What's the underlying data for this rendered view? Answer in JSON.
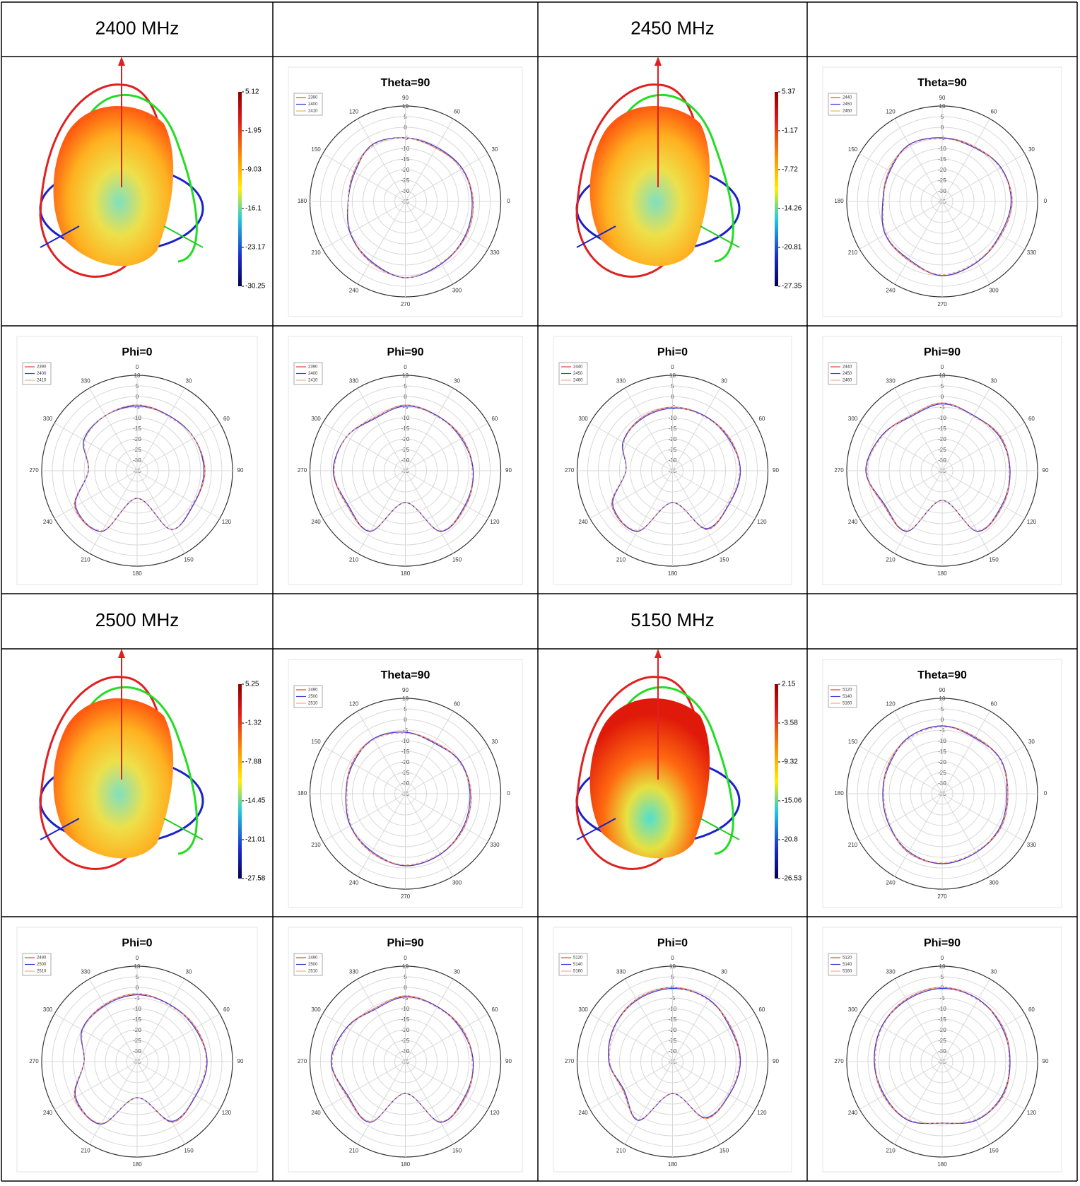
{
  "polar_axes": {
    "rlim": [
      -35,
      10
    ],
    "rticks": [
      10,
      5,
      0,
      -5,
      -10,
      -15,
      -20,
      -25,
      -30,
      -35
    ],
    "theta": {
      "zero": "east",
      "direction": "ccw",
      "angles": [
        0,
        30,
        60,
        90,
        120,
        150,
        180,
        210,
        240,
        270,
        300,
        330
      ]
    },
    "phi": {
      "zero": "north",
      "direction": "cw",
      "angles": [
        0,
        30,
        60,
        90,
        120,
        150,
        180,
        210,
        240,
        270,
        300,
        330
      ]
    }
  },
  "bands": [
    {
      "label": "2400 MHz",
      "pattern3d": {
        "colorbar": [
          5.12,
          -1.95,
          -9.03,
          -16.1,
          -23.17,
          -30.25
        ]
      },
      "plots": [
        {
          "type": "polar",
          "title": "Theta=90",
          "axis": "theta",
          "series": [
            {
              "name": "2390",
              "color": "#e0453a",
              "values": [
                -3,
                -4,
                -6,
                -5,
                -4,
                -7,
                -8,
                -5,
                -2,
                1,
                -1,
                -2
              ]
            },
            {
              "name": "2400",
              "color": "#3b3bd8",
              "values": [
                -3.5,
                -4,
                -5.5,
                -5,
                -4,
                -7.5,
                -8,
                -5,
                -2.5,
                1,
                -1,
                -2.5
              ]
            },
            {
              "name": "2410",
              "color": "#f3a98a",
              "values": [
                -3,
                -4.5,
                -6,
                -5,
                -4.5,
                -7,
                -8,
                -5.5,
                -2,
                1,
                -1.5,
                -2
              ]
            }
          ]
        },
        {
          "type": "polar",
          "title": "Phi=0",
          "axis": "phi",
          "series": [
            {
              "name": "2390",
              "color": "#e0453a",
              "values": [
                -4,
                -5,
                -4,
                -3,
                -4,
                -3,
                -22,
                -2,
                -1,
                -12,
                -6,
                -5
              ]
            },
            {
              "name": "2400",
              "color": "#3b3bd8",
              "values": [
                -4.5,
                -5,
                -4,
                -3.5,
                -4,
                -3,
                -22,
                -2,
                -1.5,
                -12,
                -6,
                -5
              ]
            },
            {
              "name": "2410",
              "color": "#f3a98a",
              "values": [
                -4,
                -5.5,
                -4,
                -3,
                -4.5,
                -3,
                -22,
                -2.5,
                -1,
                -12,
                -6.5,
                -5
              ]
            }
          ]
        },
        {
          "type": "polar",
          "title": "Phi=90",
          "axis": "phi",
          "series": [
            {
              "name": "2390",
              "color": "#e0453a",
              "values": [
                -4,
                -5,
                -4,
                -3,
                -2,
                -2,
                -20,
                -2,
                -3,
                -1,
                -3,
                -6
              ]
            },
            {
              "name": "2400",
              "color": "#3b3bd8",
              "values": [
                -4.5,
                -5,
                -4.5,
                -3,
                -2.5,
                -2,
                -20,
                -2,
                -3.5,
                -1,
                -3,
                -6.5
              ]
            },
            {
              "name": "2410",
              "color": "#f3a98a",
              "values": [
                -4,
                -5.5,
                -4,
                -3.5,
                -2,
                -2.5,
                -20,
                -2.5,
                -3,
                -1.5,
                -3,
                -6
              ]
            }
          ]
        }
      ]
    },
    {
      "label": "2450 MHz",
      "pattern3d": {
        "colorbar": [
          5.37,
          -1.17,
          -7.72,
          -14.26,
          -20.81,
          -27.35
        ]
      },
      "plots": [
        {
          "type": "polar",
          "title": "Theta=90",
          "axis": "theta",
          "series": [
            {
              "name": "2440",
              "color": "#e0453a",
              "values": [
                -2,
                -3,
                -5,
                -5,
                -4,
                -6,
                -7,
                -4,
                -3,
                0,
                -2,
                -3
              ]
            },
            {
              "name": "2450",
              "color": "#3b3bd8",
              "values": [
                -2.5,
                -3,
                -5.5,
                -5,
                -4,
                -6.5,
                -7,
                -4,
                -3.5,
                0,
                -2,
                -3.5
              ]
            },
            {
              "name": "2460",
              "color": "#f3a98a",
              "values": [
                -2,
                -3.5,
                -5,
                -5.5,
                -4.5,
                -6,
                -7.5,
                -4.5,
                -3,
                -0.5,
                -2.5,
                -3
              ]
            }
          ]
        },
        {
          "type": "polar",
          "title": "Phi=0",
          "axis": "phi",
          "series": [
            {
              "name": "2440",
              "color": "#e0453a",
              "values": [
                -5,
                -5,
                -4,
                -3,
                -4,
                -3,
                -20,
                -2,
                -2,
                -13,
                -8,
                -6
              ]
            },
            {
              "name": "2450",
              "color": "#3b3bd8",
              "values": [
                -5.5,
                -5,
                -4.5,
                -3,
                -4,
                -3.5,
                -20,
                -2,
                -2.5,
                -13,
                -8,
                -6.5
              ]
            },
            {
              "name": "2460",
              "color": "#f3a98a",
              "values": [
                -5,
                -5.5,
                -4,
                -3.5,
                -4.5,
                -3,
                -20,
                -2.5,
                -2,
                -13,
                -8.5,
                -6
              ]
            }
          ]
        },
        {
          "type": "polar",
          "title": "Phi=90",
          "axis": "phi",
          "series": [
            {
              "name": "2440",
              "color": "#e0453a",
              "values": [
                -3,
                -5,
                -3,
                -3,
                -2,
                -2,
                -21,
                -2,
                -3,
                1,
                -2,
                -5
              ]
            },
            {
              "name": "2450",
              "color": "#3b3bd8",
              "values": [
                -3.5,
                -5,
                -3.5,
                -3,
                -2.5,
                -2,
                -21,
                -2,
                -3.5,
                1,
                -2,
                -5.5
              ]
            },
            {
              "name": "2460",
              "color": "#f3a98a",
              "values": [
                -3,
                -5.5,
                -3,
                -3.5,
                -2,
                -2.5,
                -21,
                -2.5,
                -3,
                0.5,
                -2.5,
                -5
              ]
            }
          ]
        }
      ]
    },
    {
      "label": "2500 MHz",
      "pattern3d": {
        "colorbar": [
          5.25,
          -1.32,
          -7.88,
          -14.45,
          -21.01,
          -27.58
        ]
      },
      "plots": [
        {
          "type": "polar",
          "title": "Theta=90",
          "axis": "theta",
          "series": [
            {
              "name": "2490",
              "color": "#e0453a",
              "values": [
                -4,
                -5,
                -7,
                -6,
                -5,
                -6,
                -7,
                -5,
                -3,
                -1,
                -2,
                -3
              ]
            },
            {
              "name": "2500",
              "color": "#3b3bd8",
              "values": [
                -4.5,
                -5,
                -7.5,
                -6,
                -5,
                -6.5,
                -7,
                -5,
                -3.5,
                -1,
                -2,
                -3.5
              ]
            },
            {
              "name": "2510",
              "color": "#f3a98a",
              "values": [
                -4,
                -5.5,
                -7,
                -6.5,
                -5.5,
                -6,
                -7.5,
                -5.5,
                -3,
                -1.5,
                -2.5,
                -3
              ]
            }
          ]
        },
        {
          "type": "polar",
          "title": "Phi=0",
          "axis": "phi",
          "series": [
            {
              "name": "2490",
              "color": "#e0453a",
              "values": [
                -3,
                -4,
                -3,
                -2,
                -3,
                -2,
                -18,
                -1,
                -1,
                -10,
                -5,
                -4
              ]
            },
            {
              "name": "2500",
              "color": "#3b3bd8",
              "values": [
                -3.5,
                -4,
                -3.5,
                -2,
                -3,
                -2.5,
                -18,
                -1,
                -1.5,
                -10,
                -5,
                -4.5
              ]
            },
            {
              "name": "2510",
              "color": "#f3a98a",
              "values": [
                -3,
                -4.5,
                -3,
                -2.5,
                -3.5,
                -2,
                -18,
                -1.5,
                -1,
                -10,
                -5.5,
                -4
              ]
            }
          ]
        },
        {
          "type": "polar",
          "title": "Phi=90",
          "axis": "phi",
          "series": [
            {
              "name": "2490",
              "color": "#e0453a",
              "values": [
                -4,
                -5,
                -4,
                -3,
                -2,
                -2,
                -20,
                -2,
                -3,
                0,
                -3,
                -6
              ]
            },
            {
              "name": "2500",
              "color": "#3b3bd8",
              "values": [
                -4.5,
                -5,
                -4.5,
                -3,
                -2.5,
                -2,
                -20,
                -2,
                -3.5,
                0,
                -3,
                -6.5
              ]
            },
            {
              "name": "2510",
              "color": "#f3a98a",
              "values": [
                -4,
                -5.5,
                -4,
                -3.5,
                -2,
                -2.5,
                -20,
                -2.5,
                -3,
                -0.5,
                -3.5,
                -6
              ]
            }
          ]
        }
      ]
    },
    {
      "label": "5150 MHz",
      "pattern3d": {
        "colorbar": [
          2.15,
          -3.58,
          -9.32,
          -15.06,
          -20.8,
          -26.53
        ]
      },
      "plots": [
        {
          "type": "polar",
          "title": "Theta=90",
          "axis": "theta",
          "series": [
            {
              "name": "5120",
              "color": "#e0453a",
              "values": [
                -4,
                -3,
                -4,
                -3,
                -4,
                -6,
                -7,
                -6,
                -3,
                -2,
                -3,
                -3
              ]
            },
            {
              "name": "5140",
              "color": "#3b3bd8",
              "values": [
                -4.5,
                -3,
                -4.5,
                -3,
                -4,
                -6.5,
                -7,
                -6,
                -3.5,
                -2,
                -3,
                -3.5
              ]
            },
            {
              "name": "5160",
              "color": "#f3a98a",
              "values": [
                -4,
                -3.5,
                -4,
                -3.5,
                -4.5,
                -6,
                -7.5,
                -6.5,
                -3,
                -2.5,
                -3.5,
                -3
              ]
            }
          ]
        },
        {
          "type": "polar",
          "title": "Phi=0",
          "axis": "phi",
          "series": [
            {
              "name": "5120",
              "color": "#e0453a",
              "values": [
                0,
                -1,
                -3,
                -3,
                -4,
                -4,
                -20,
                -3,
                -8,
                -5,
                -3,
                -1
              ]
            },
            {
              "name": "5140",
              "color": "#3b3bd8",
              "values": [
                -0.5,
                -1,
                -3.5,
                -3,
                -4,
                -4.5,
                -20,
                -3,
                -8.5,
                -5,
                -3,
                -1.5
              ]
            },
            {
              "name": "5160",
              "color": "#f3a98a",
              "values": [
                0,
                -1.5,
                -3,
                -3.5,
                -4.5,
                -4,
                -20,
                -3.5,
                -8,
                -5.5,
                -3.5,
                -1
              ]
            }
          ]
        },
        {
          "type": "polar",
          "title": "Phi=90",
          "axis": "phi",
          "series": [
            {
              "name": "5120",
              "color": "#e0453a",
              "values": [
                0,
                -1,
                -2,
                -3,
                -2,
                -3,
                -6,
                -3,
                -3,
                -3,
                -2,
                -1
              ]
            },
            {
              "name": "5140",
              "color": "#3b3bd8",
              "values": [
                -0.5,
                -1,
                -2.5,
                -3,
                -2.5,
                -3,
                -6,
                -3,
                -3.5,
                -3,
                -2,
                -1.5
              ]
            },
            {
              "name": "5160",
              "color": "#f3a98a",
              "values": [
                0,
                -1.5,
                -2,
                -3.5,
                -2,
                -3.5,
                -6,
                -3.5,
                -3,
                -3.5,
                -2.5,
                -1
              ]
            }
          ]
        }
      ]
    }
  ]
}
